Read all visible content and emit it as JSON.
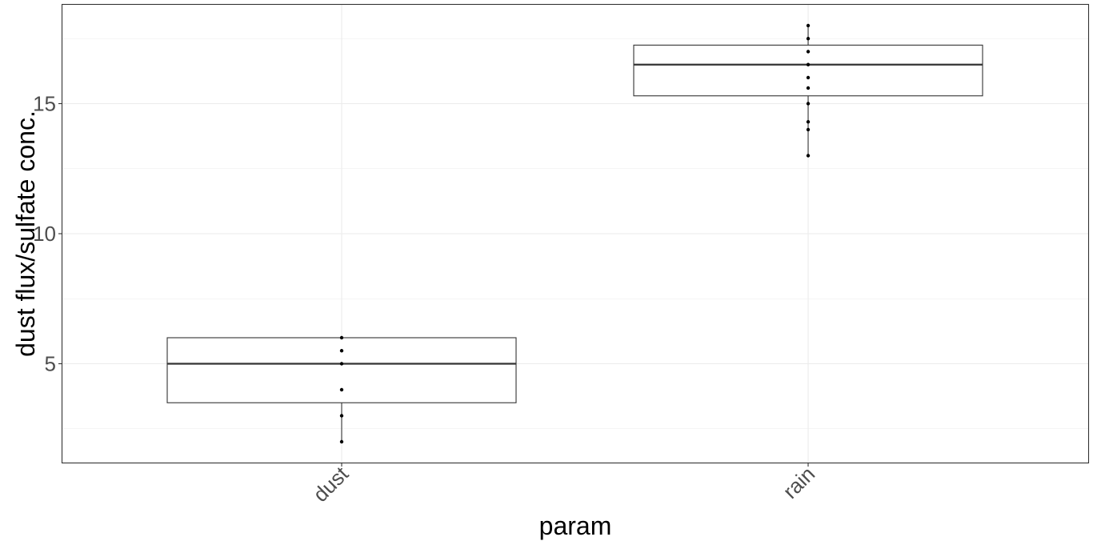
{
  "chart_data": {
    "type": "box",
    "xlabel": "param",
    "ylabel": "dust flux/sulfate conc.",
    "categories": [
      "dust",
      "rain"
    ],
    "ylim": [
      1.2,
      18.8
    ],
    "y_ticks": [
      5,
      10,
      15
    ],
    "grid": true,
    "boxes": [
      {
        "category": "dust",
        "lower_whisker": 2.0,
        "q1": 3.5,
        "median": 5.0,
        "q3": 6.0,
        "upper_whisker": 6.0
      },
      {
        "category": "rain",
        "lower_whisker": 13.0,
        "q1": 15.3,
        "median": 16.5,
        "q3": 17.25,
        "upper_whisker": 18.0
      }
    ],
    "points": [
      {
        "category": "dust",
        "values": [
          2.0,
          3.0,
          4.0,
          5.0,
          5.5,
          6.0
        ]
      },
      {
        "category": "rain",
        "values": [
          13.0,
          14.0,
          14.3,
          15.0,
          15.6,
          16.0,
          16.5,
          17.0,
          17.5,
          18.0
        ]
      }
    ],
    "colors": {
      "box_stroke": "#333333",
      "panel_border": "#333333",
      "grid": "#ebebeb",
      "point": "#000000"
    }
  }
}
